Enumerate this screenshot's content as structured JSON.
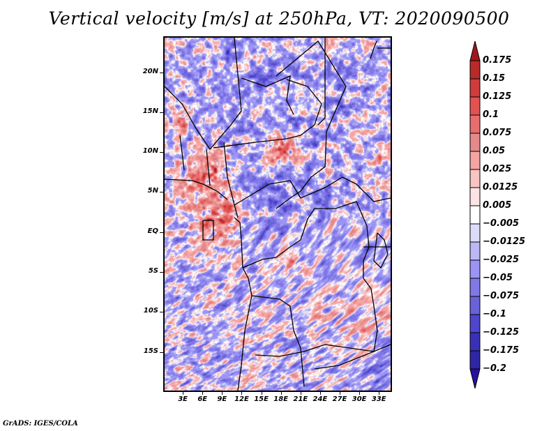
{
  "title": "Vertical velocity [m/s] at 250hPa, VT: 2020090500",
  "credit": "GrADS: IGES/COLA",
  "map": {
    "variable": "Vertical velocity",
    "units": "m/s",
    "level": "250hPa",
    "valid_time": "2020090500",
    "lon_range_deg": [
      0,
      35
    ],
    "lat_range_deg": [
      -20,
      24.5
    ],
    "y_axis": {
      "ticks": [
        {
          "label": "20N",
          "lat": 20
        },
        {
          "label": "15N",
          "lat": 15
        },
        {
          "label": "10N",
          "lat": 10
        },
        {
          "label": "5N",
          "lat": 5
        },
        {
          "label": "EQ",
          "lat": 0
        },
        {
          "label": "5S",
          "lat": -5
        },
        {
          "label": "10S",
          "lat": -10
        },
        {
          "label": "15S",
          "lat": -15
        }
      ]
    },
    "x_axis": {
      "ticks": [
        {
          "label": "3E",
          "lon": 3
        },
        {
          "label": "6E",
          "lon": 6
        },
        {
          "label": "9E",
          "lon": 9
        },
        {
          "label": "12E",
          "lon": 12
        },
        {
          "label": "15E",
          "lon": 15
        },
        {
          "label": "18E",
          "lon": 18
        },
        {
          "label": "21E",
          "lon": 21
        },
        {
          "label": "24E",
          "lon": 24
        },
        {
          "label": "27E",
          "lon": 27
        },
        {
          "label": "30E",
          "lon": 30
        },
        {
          "label": "33E",
          "lon": 33
        }
      ]
    },
    "colors": {
      "border": "#000000",
      "frame": "#000000"
    }
  },
  "colorbar": {
    "levels": [
      {
        "label": "0.175",
        "color": "#a4161a"
      },
      {
        "label": "0.15",
        "color": "#b92a2a"
      },
      {
        "label": "0.125",
        "color": "#cf3c3c"
      },
      {
        "label": "0.1",
        "color": "#e25252"
      },
      {
        "label": "0.075",
        "color": "#e86e6e"
      },
      {
        "label": "0.05",
        "color": "#e48a8a"
      },
      {
        "label": "0.025",
        "color": "#f5a3a3"
      },
      {
        "label": "0.0125",
        "color": "#f9c4c4"
      },
      {
        "label": "0.005",
        "color": "#fde4e4"
      },
      {
        "label": "-0.005",
        "color": "#ffffff"
      },
      {
        "label": "-0.0125",
        "color": "#dcdcf8"
      },
      {
        "label": "-0.025",
        "color": "#bcb8f5"
      },
      {
        "label": "-0.05",
        "color": "#9c94f4"
      },
      {
        "label": "-0.075",
        "color": "#8078e6"
      },
      {
        "label": "-0.1",
        "color": "#6a62d9"
      },
      {
        "label": "-0.125",
        "color": "#4e46cc"
      },
      {
        "label": "-0.175",
        "color": "#3a30b8"
      },
      {
        "label": "-0.2",
        "color": "#2e26a4"
      }
    ],
    "top_arrow_color": "#a4161a",
    "bottom_arrow_color": "#2a10a0"
  }
}
